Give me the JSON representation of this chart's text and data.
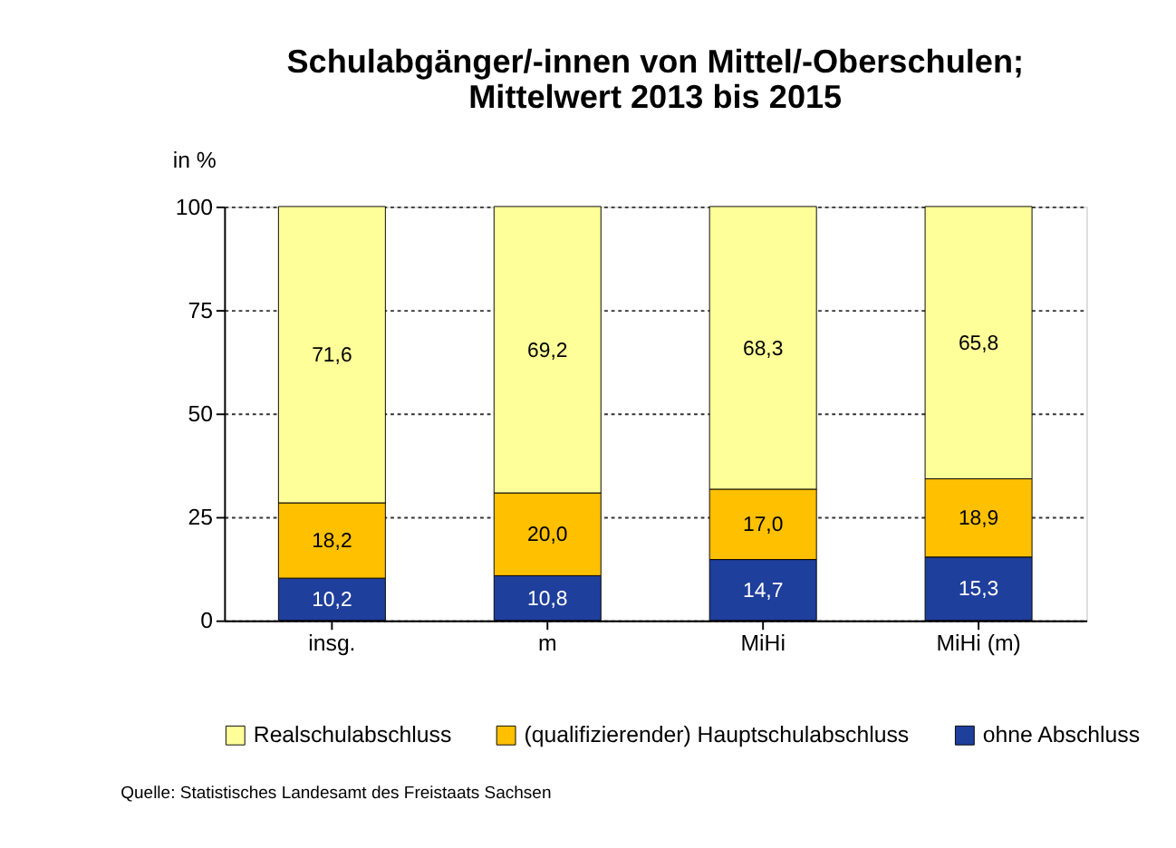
{
  "chart_data": {
    "type": "bar",
    "title": "Schulabgänger/-innen von Mittel/-Oberschulen;\nMittelwert 2013 bis 2015",
    "ylabel": "in %",
    "categories": [
      "insg.",
      "m",
      "MiHi",
      "MiHi  (m)"
    ],
    "stacked": true,
    "series": [
      {
        "name": "ohne Abschluss",
        "color": "#1f3f9c",
        "values": [
          10.2,
          10.8,
          14.7,
          15.3
        ],
        "value_labels": [
          "10,2",
          "10,8",
          "14,7",
          "15,3"
        ]
      },
      {
        "name": "(qualifizierender) Hauptschulabschluss",
        "color": "#ffc000",
        "values": [
          18.2,
          20.0,
          17.0,
          18.9
        ],
        "value_labels": [
          "18,2",
          "20,0",
          "17,0",
          "18,9"
        ]
      },
      {
        "name": "Realschulabschluss",
        "color": "#ffff99",
        "values": [
          71.6,
          69.2,
          68.3,
          65.8
        ],
        "value_labels": [
          "71,6",
          "69,2",
          "68,3",
          "65,8"
        ]
      }
    ],
    "ylim": [
      0,
      100
    ],
    "yticks": [
      0,
      25,
      50,
      75,
      100
    ],
    "grid": "y",
    "legend": "bottom",
    "annotations": [
      "Quelle: Statistisches Landesamt des Freistaats Sachsen"
    ]
  }
}
